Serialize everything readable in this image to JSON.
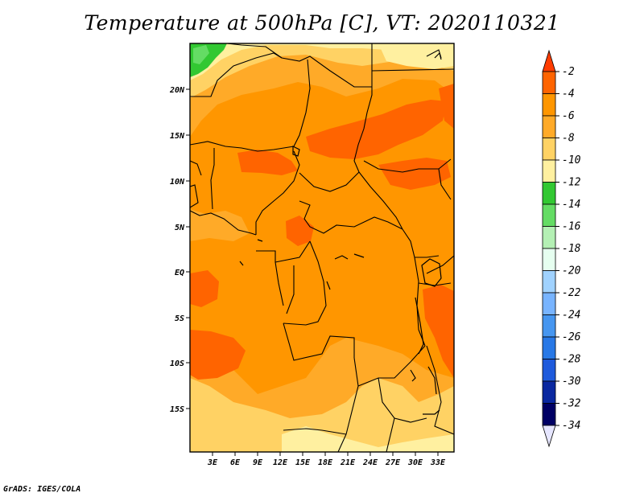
{
  "title": "Temperature at 500hPa [C], VT: 2020110321",
  "credit": "GrADS: IGES/COLA",
  "lat_labels": [
    "20N",
    "15N",
    "10N",
    "5N",
    "EQ",
    "5S",
    "10S",
    "15S"
  ],
  "lon_labels": [
    "3E",
    "6E",
    "9E",
    "12E",
    "15E",
    "18E",
    "21E",
    "24E",
    "27E",
    "30E",
    "33E"
  ],
  "colorbar": {
    "labels": [
      "-2",
      "-4",
      "-6",
      "-8",
      "-10",
      "-12",
      "-14",
      "-16",
      "-18",
      "-20",
      "-22",
      "-24",
      "-26",
      "-28",
      "-30",
      "-32",
      "-34"
    ],
    "colors": [
      "#ff3c00",
      "#ff6400",
      "#ff9600",
      "#ffaa28",
      "#ffd264",
      "#fff0a0",
      "#32c832",
      "#64dc64",
      "#b4f0b4",
      "#e6fff0",
      "#a0d2ff",
      "#78b4ff",
      "#4696f0",
      "#2878e6",
      "#1e5adc",
      "#0a28a0",
      "#000064"
    ],
    "under_color": "#e6e6ff"
  },
  "field_colors": {
    "orange": "#ff9600",
    "light_orange": "#ffaa28",
    "dark_orange": "#ff6400",
    "yellow": "#ffd264",
    "pale_yellow": "#fff0a0",
    "green": "#32c832"
  }
}
